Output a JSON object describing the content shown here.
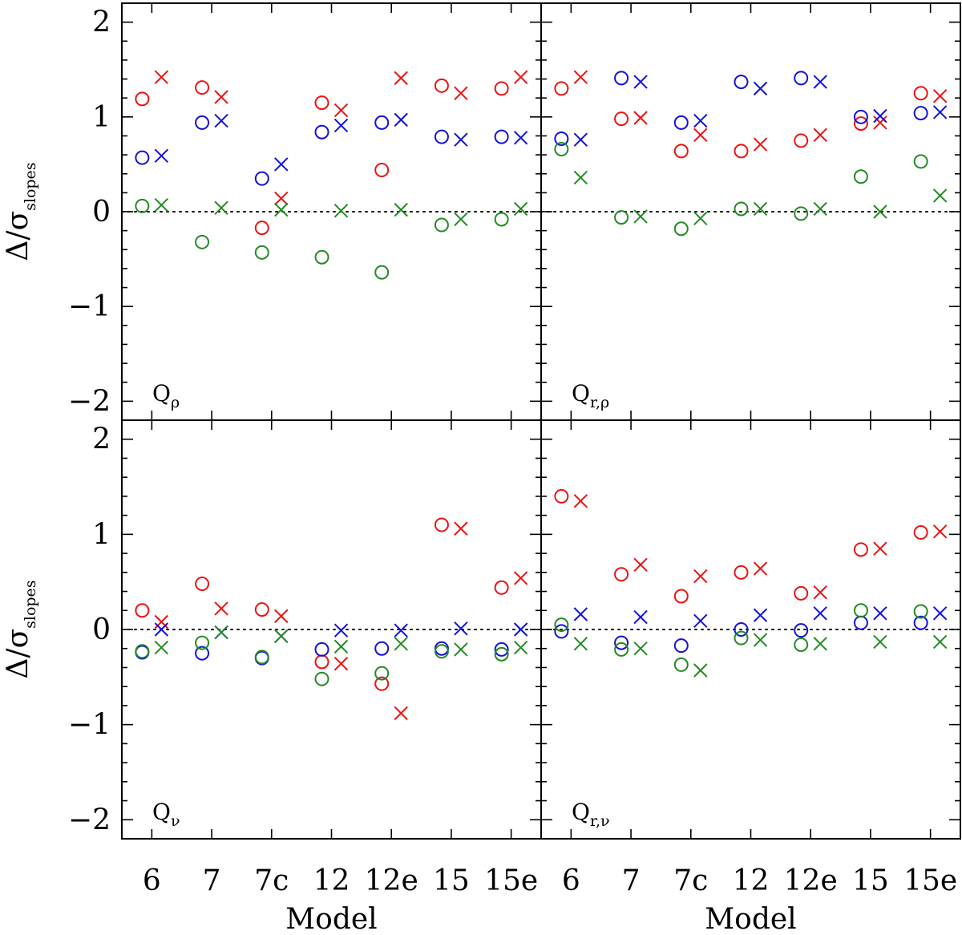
{
  "chart_data": {
    "type": "scatter",
    "ylabel_main": "Δ/σ",
    "ylabel_sub": "slopes",
    "xlabel": "Model",
    "categories": [
      "6",
      "7",
      "7c",
      "12",
      "12e",
      "15",
      "15e"
    ],
    "ylim": [
      -2.2,
      2.2
    ],
    "yticks": [
      -2,
      -1,
      0,
      1,
      2
    ],
    "ytick_labels": [
      "−2",
      "−1",
      "0",
      "1",
      "2"
    ],
    "reference_line": 0,
    "markers": {
      "circle": "○",
      "cross": "×"
    },
    "colors": {
      "red": "#ee1111",
      "blue": "#1111dd",
      "green": "#228b22"
    },
    "panels": [
      {
        "label_main": "Q",
        "label_sub": "ρ",
        "series": [
          {
            "color": "red",
            "marker": "circle",
            "values": [
              1.19,
              1.31,
              -0.17,
              1.15,
              0.44,
              1.33,
              1.3
            ]
          },
          {
            "color": "red",
            "marker": "cross",
            "values": [
              1.42,
              1.21,
              0.14,
              1.07,
              1.41,
              1.25,
              1.42
            ]
          },
          {
            "color": "blue",
            "marker": "circle",
            "values": [
              0.57,
              0.94,
              0.35,
              0.84,
              0.94,
              0.79,
              0.79
            ]
          },
          {
            "color": "blue",
            "marker": "cross",
            "values": [
              0.59,
              0.96,
              0.5,
              0.91,
              0.97,
              0.76,
              0.78
            ]
          },
          {
            "color": "green",
            "marker": "circle",
            "values": [
              0.06,
              -0.32,
              -0.43,
              -0.48,
              -0.64,
              -0.14,
              -0.08
            ]
          },
          {
            "color": "green",
            "marker": "cross",
            "values": [
              0.07,
              0.04,
              0.02,
              0.01,
              0.02,
              -0.08,
              0.03
            ]
          }
        ]
      },
      {
        "label_main": "Q",
        "label_sub": "r,ρ",
        "series": [
          {
            "color": "red",
            "marker": "circle",
            "values": [
              1.3,
              0.98,
              0.64,
              0.64,
              0.75,
              0.93,
              1.25
            ]
          },
          {
            "color": "red",
            "marker": "cross",
            "values": [
              1.42,
              0.99,
              0.81,
              0.71,
              0.81,
              0.94,
              1.22
            ]
          },
          {
            "color": "blue",
            "marker": "circle",
            "values": [
              0.77,
              1.41,
              0.94,
              1.37,
              1.41,
              1.0,
              1.04
            ]
          },
          {
            "color": "blue",
            "marker": "cross",
            "values": [
              0.76,
              1.37,
              0.96,
              1.3,
              1.37,
              1.01,
              1.05
            ]
          },
          {
            "color": "green",
            "marker": "circle",
            "values": [
              0.66,
              -0.06,
              -0.18,
              0.03,
              -0.02,
              0.37,
              0.53
            ]
          },
          {
            "color": "green",
            "marker": "cross",
            "values": [
              0.36,
              -0.05,
              -0.07,
              0.03,
              0.03,
              0.0,
              0.17
            ]
          }
        ]
      },
      {
        "label_main": "Q",
        "label_sub": "ν",
        "series": [
          {
            "color": "red",
            "marker": "circle",
            "values": [
              0.2,
              0.48,
              0.21,
              -0.34,
              -0.57,
              1.1,
              0.44
            ]
          },
          {
            "color": "red",
            "marker": "cross",
            "values": [
              0.08,
              0.22,
              0.14,
              -0.36,
              -0.88,
              1.06,
              0.54
            ]
          },
          {
            "color": "blue",
            "marker": "circle",
            "values": [
              -0.24,
              -0.25,
              -0.3,
              -0.21,
              -0.2,
              -0.2,
              -0.21
            ]
          },
          {
            "color": "blue",
            "marker": "cross",
            "values": [
              0.0,
              -0.03,
              -0.07,
              -0.01,
              -0.01,
              0.01,
              0.0
            ]
          },
          {
            "color": "green",
            "marker": "circle",
            "values": [
              -0.23,
              -0.14,
              -0.29,
              -0.52,
              -0.46,
              -0.23,
              -0.26
            ]
          },
          {
            "color": "green",
            "marker": "cross",
            "values": [
              -0.19,
              -0.03,
              -0.07,
              -0.18,
              -0.15,
              -0.21,
              -0.19
            ]
          }
        ]
      },
      {
        "label_main": "Q",
        "label_sub": "r,ν",
        "series": [
          {
            "color": "red",
            "marker": "circle",
            "values": [
              1.4,
              0.58,
              0.35,
              0.6,
              0.38,
              0.84,
              1.02
            ]
          },
          {
            "color": "red",
            "marker": "cross",
            "values": [
              1.35,
              0.68,
              0.56,
              0.64,
              0.39,
              0.85,
              1.03
            ]
          },
          {
            "color": "blue",
            "marker": "circle",
            "values": [
              -0.02,
              -0.14,
              -0.17,
              0.0,
              -0.01,
              0.07,
              0.07
            ]
          },
          {
            "color": "blue",
            "marker": "cross",
            "values": [
              0.16,
              0.13,
              0.09,
              0.15,
              0.17,
              0.17,
              0.17
            ]
          },
          {
            "color": "green",
            "marker": "circle",
            "values": [
              0.05,
              -0.21,
              -0.37,
              -0.09,
              -0.16,
              0.2,
              0.19
            ]
          },
          {
            "color": "green",
            "marker": "cross",
            "values": [
              -0.15,
              -0.2,
              -0.43,
              -0.11,
              -0.15,
              -0.13,
              -0.13
            ]
          }
        ]
      }
    ]
  }
}
